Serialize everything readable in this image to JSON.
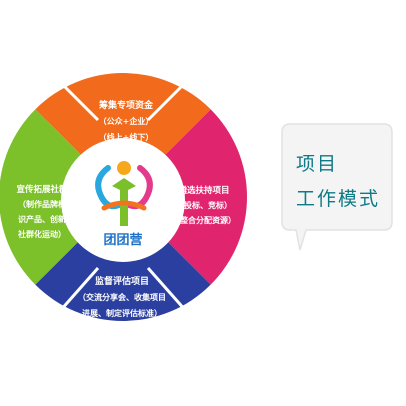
{
  "colors": {
    "top": "#f26a1b",
    "right": "#e0246e",
    "bottom": "#2a3f9f",
    "left": "#7cc02a",
    "center_ring": "#ffffff",
    "logo_text": "#1e73c8",
    "bubble_text": "#0e7a86",
    "bubble_fill": "#f4f4f4"
  },
  "segments": {
    "top": {
      "lines": [
        "筹集专项资金",
        "（公众+企业）",
        "（线上+线下）"
      ]
    },
    "right": {
      "lines": [
        "遴选扶持项目",
        "（投标、竞标）",
        "（整合分配资源）"
      ]
    },
    "bottom": {
      "lines": [
        "监督评估项目",
        "（交流分享会、收集项目",
        "进展、制定评估标准）"
      ]
    },
    "left": {
      "lines": [
        "宣传拓展社群",
        "（制作品牌标",
        "识产品、创新",
        "社群化运动）"
      ]
    }
  },
  "logo": {
    "text": "团团营",
    "icon": "figure-logo-icon"
  },
  "bubble": {
    "line1": "项目",
    "line2": "工作模式"
  }
}
